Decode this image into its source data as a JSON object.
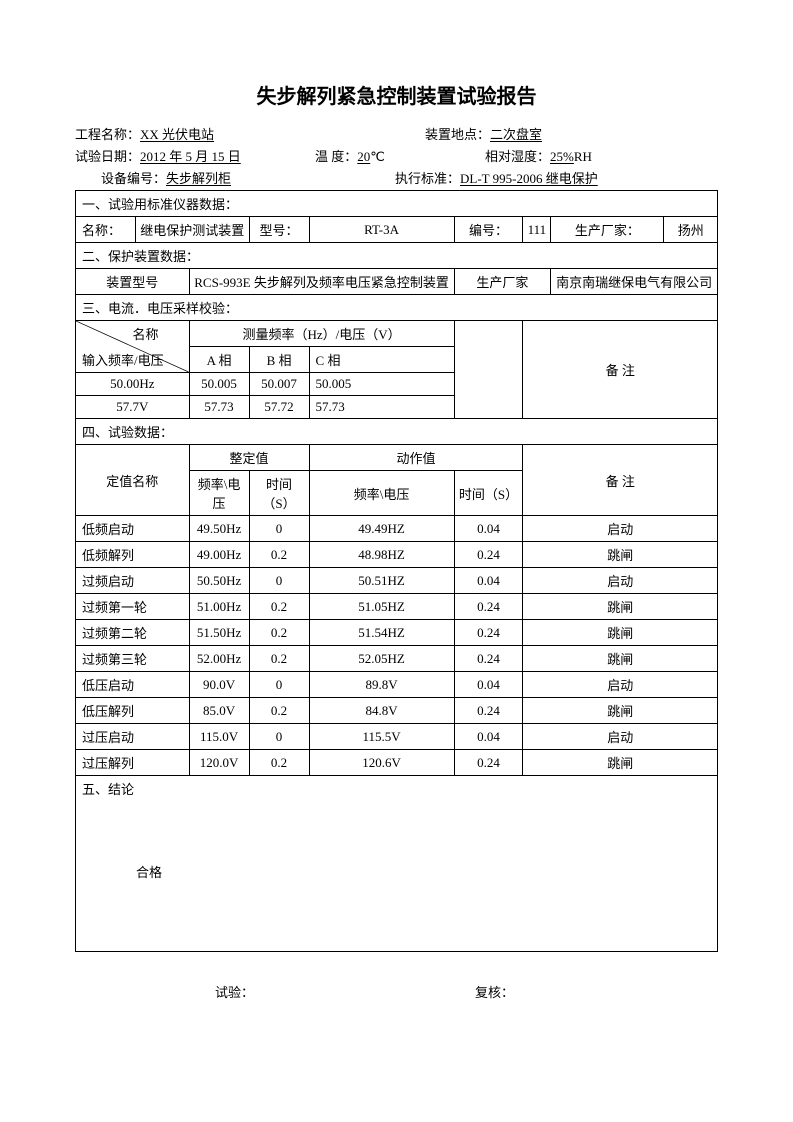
{
  "title": "失步解列紧急控制装置试验报告",
  "header": {
    "project_label": "工程名称：",
    "project_value": "XX 光伏电站",
    "location_label": "装置地点：",
    "location_value": "二次盘室",
    "date_label": "试验日期：",
    "date_value": "2012 年 5 月 15 日",
    "temp_label": "温  度：",
    "temp_value": "  20  ",
    "temp_unit": "℃",
    "humidity_label": "相对湿度：",
    "humidity_value": "25%",
    "humidity_unit": " RH",
    "device_no_label": "设备编号：",
    "device_no_value": "  失步解列柜  ",
    "standard_label": "执行标准：",
    "standard_value": "DL-T 995-2006 继电保护"
  },
  "section1": {
    "title": "一、试验用标准仪器数据：",
    "name_label": "名称：",
    "name_value": "继电保护测试装置",
    "model_label": "型号：",
    "model_value": "RT-3A",
    "serial_label": "编号：",
    "serial_value": "111",
    "mfr_label": "生产厂家：",
    "mfr_value": "扬州"
  },
  "section2": {
    "title": "二、保护装置数据：",
    "device_model_label": "装置型号",
    "device_model_value": "RCS-993E 失步解列及频率电压紧急控制装置",
    "mfr_label": "生产厂家",
    "mfr_value": "南京南瑞继保电气有限公司"
  },
  "section3": {
    "title": "三、电流．电压采样校验：",
    "diag_top": "名称",
    "diag_bottom": "输入频率/电压",
    "measure_header": "测量频率（Hz）/电压（V）",
    "cols": {
      "a": "A 相",
      "b": "B 相",
      "c": "C 相"
    },
    "remark_label": "备  注",
    "rows": [
      {
        "label": "50.00Hz",
        "a": "50.005",
        "b": "50.007",
        "c": "50.005"
      },
      {
        "label": "57.7V",
        "a": "57.73",
        "b": "57.72",
        "c": "57.73"
      }
    ]
  },
  "section4": {
    "title": "四、试验数据：",
    "name_col": "定值名称",
    "setting_col": "整定值",
    "action_col": "动作值",
    "remark_col": "备  注",
    "freq_volt": "频率\\电压",
    "time": "时间（S）",
    "rows": [
      {
        "name": "低频启动",
        "sf": "49.50Hz",
        "st": "0",
        "af": "49.49HZ",
        "at": "0.04",
        "r": "启动"
      },
      {
        "name": "低频解列",
        "sf": "49.00Hz",
        "st": "0.2",
        "af": "48.98HZ",
        "at": "0.24",
        "r": "跳闸"
      },
      {
        "name": "过频启动",
        "sf": "50.50Hz",
        "st": "0",
        "af": "50.51HZ",
        "at": "0.04",
        "r": "启动"
      },
      {
        "name": "过频第一轮",
        "sf": "51.00Hz",
        "st": "0.2",
        "af": "51.05HZ",
        "at": "0.24",
        "r": "跳闸"
      },
      {
        "name": "过频第二轮",
        "sf": "51.50Hz",
        "st": "0.2",
        "af": "51.54HZ",
        "at": "0.24",
        "r": "跳闸"
      },
      {
        "name": "过频第三轮",
        "sf": "52.00Hz",
        "st": "0.2",
        "af": "52.05HZ",
        "at": "0.24",
        "r": "跳闸"
      },
      {
        "name": "低压启动",
        "sf": "90.0V",
        "st": "0",
        "af": "89.8V",
        "at": "0.04",
        "r": "启动"
      },
      {
        "name": "低压解列",
        "sf": "85.0V",
        "st": "0.2",
        "af": "84.8V",
        "at": "0.24",
        "r": "跳闸"
      },
      {
        "name": "过压启动",
        "sf": "115.0V",
        "st": "0",
        "af": "115.5V",
        "at": "0.04",
        "r": "启动"
      },
      {
        "name": "过压解列",
        "sf": "120.0V",
        "st": "0.2",
        "af": "120.6V",
        "at": "0.24",
        "r": "跳闸"
      }
    ]
  },
  "section5": {
    "title": "五、结论",
    "result": "合格"
  },
  "sig": {
    "test_label": "试验：",
    "review_label": "复核："
  }
}
